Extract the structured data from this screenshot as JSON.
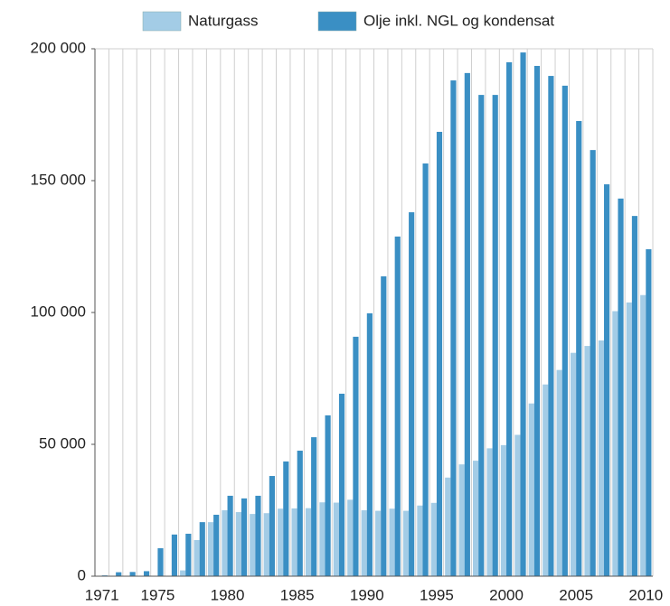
{
  "chart_data": {
    "type": "bar",
    "categories": [
      "1971",
      null,
      null,
      null,
      "1975",
      null,
      null,
      null,
      null,
      "1980",
      null,
      null,
      null,
      null,
      "1985",
      null,
      null,
      null,
      null,
      "1990",
      null,
      null,
      null,
      null,
      "1995",
      null,
      null,
      null,
      null,
      "2000",
      null,
      null,
      null,
      null,
      "2005",
      null,
      null,
      null,
      null,
      "2010"
    ],
    "series": [
      {
        "name": "Naturgass",
        "color": "#a3cce6",
        "values": [
          0,
          0,
          0,
          0,
          0,
          0,
          2200,
          13700,
          20500,
          25000,
          24300,
          23600,
          23900,
          25600,
          25700,
          25800,
          28000,
          27900,
          29000,
          25000,
          24800,
          25600,
          24800,
          26800,
          27800,
          37400,
          42400,
          43800,
          48500,
          49700,
          53600,
          65500,
          72700,
          78200,
          84700,
          87300,
          89400,
          100500,
          103800,
          106600
        ]
      },
      {
        "name": "Olje inkl. NGL og kondensat",
        "color": "#3a8fc4",
        "values": [
          300,
          1500,
          1600,
          1900,
          10600,
          15800,
          16100,
          20500,
          23300,
          30500,
          29500,
          30500,
          38000,
          43500,
          47600,
          52700,
          61000,
          69200,
          90800,
          99700,
          113700,
          128800,
          138000,
          156500,
          168500,
          188000,
          190800,
          182500,
          182500,
          194900,
          198600,
          193500,
          189700,
          186000,
          172600,
          161600,
          148600,
          143200,
          136600,
          124000
        ]
      }
    ],
    "ylim": [
      0,
      200000
    ],
    "yticks": [
      {
        "value": 0,
        "label": "0"
      },
      {
        "value": 50000,
        "label": "50 000"
      },
      {
        "value": 100000,
        "label": "100 000"
      },
      {
        "value": 150000,
        "label": "150 000"
      },
      {
        "value": 200000,
        "label": "200 000"
      }
    ],
    "grid": true,
    "legend": "top"
  }
}
